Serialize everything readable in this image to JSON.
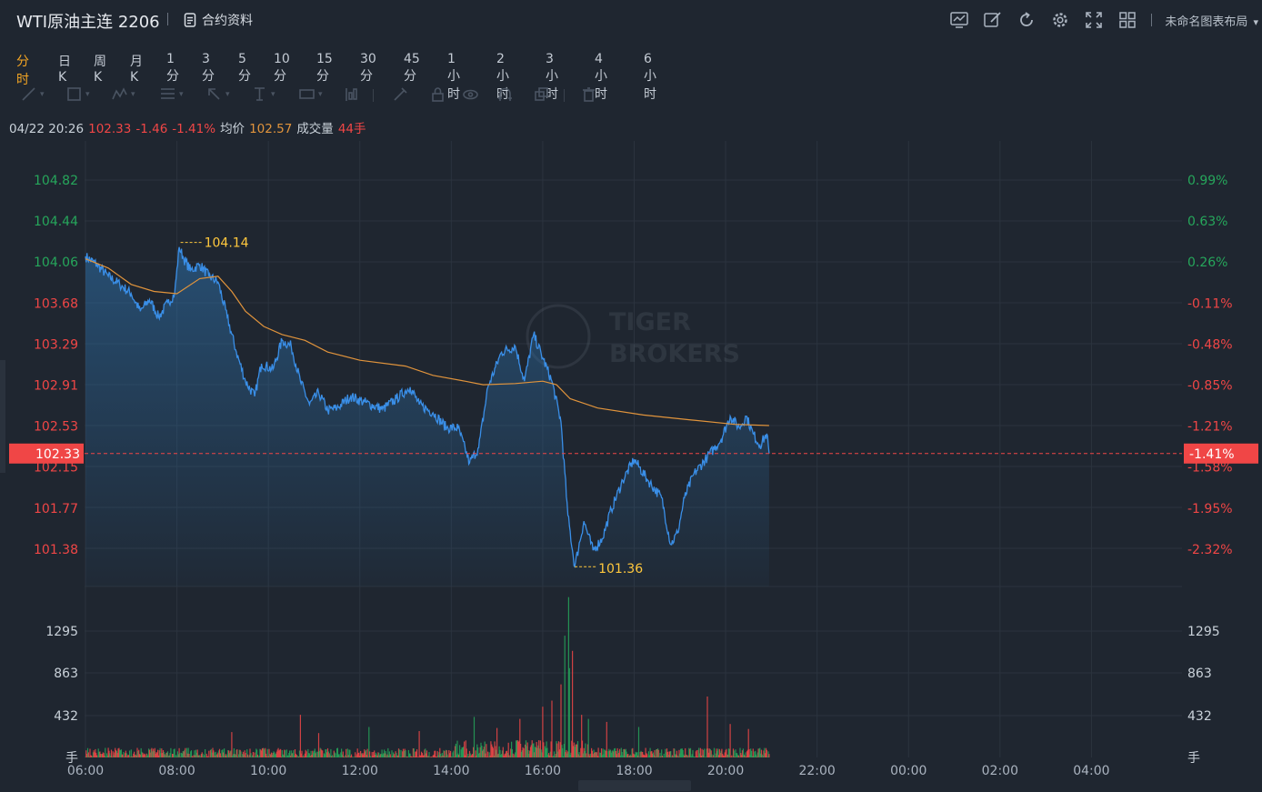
{
  "header": {
    "title": "WTI原油主连 2206",
    "contract_label": "合约资料",
    "layout_label": "未命名图表布局",
    "tool_icons": [
      "indicator-icon",
      "draw-icon",
      "refresh-icon",
      "gear-icon",
      "fullscreen-icon",
      "grid-layout-icon"
    ]
  },
  "periods": [
    "分时",
    "日K",
    "周K",
    "月K",
    "1分",
    "3分",
    "5分",
    "10分",
    "15分",
    "30分",
    "45分",
    "1小时",
    "2小时",
    "3小时",
    "4小时",
    "6小时"
  ],
  "active_period": "分时",
  "drawing_tools": [
    "line-tool-icon",
    "rectangle-tool-icon",
    "pattern-tool-icon",
    "fib-tool-icon",
    "cursor-arrow-icon",
    "text-tool-icon",
    "measure-tool-icon",
    "chart-type-icon",
    "pencil-icon",
    "lock-icon",
    "eye-icon",
    "magnet-icon",
    "copy-icon",
    "trash-icon"
  ],
  "info": {
    "datetime": "04/22 20:26",
    "price": "102.33",
    "change": "-1.46",
    "change_pct": "-1.41%",
    "avg_label": "均价",
    "avg_price": "102.57",
    "vol_label": "成交量",
    "vol_value": "44手"
  },
  "colors": {
    "up": "#26a65b",
    "down": "#f04646",
    "price_line": "#3a8fe8",
    "avg_line": "#e1943c",
    "accent": "#f5a623",
    "marker": "#ffc83d"
  },
  "chart_data": {
    "type": "line",
    "prev_close": 103.79,
    "current_price": 102.33,
    "current_price_label": "102.33",
    "current_pct_label": "-1.41%",
    "ylim": [
      101.19,
      105.01
    ],
    "price_ticks": [
      "104.82",
      "104.44",
      "104.06",
      "103.68",
      "103.29",
      "102.91",
      "102.53",
      "102.15",
      "101.77",
      "101.38"
    ],
    "pct_ticks": [
      "0.99%",
      "0.63%",
      "0.26%",
      "-0.11%",
      "-0.48%",
      "-0.85%",
      "-1.21%",
      "-1.58%",
      "-1.95%",
      "-2.32%"
    ],
    "x_ticks": [
      "06:00",
      "08:00",
      "10:00",
      "12:00",
      "14:00",
      "16:00",
      "18:00",
      "20:00",
      "22:00",
      "00:00",
      "02:00",
      "04:00"
    ],
    "time_range_hours": [
      0,
      24
    ],
    "high": {
      "label": "104.14",
      "hour": 2.08,
      "value": 104.14
    },
    "low": {
      "label": "101.36",
      "hour": 10.7,
      "value": 101.36
    },
    "price_points": [
      [
        0,
        104.02
      ],
      [
        0.25,
        103.95
      ],
      [
        0.5,
        103.85
      ],
      [
        0.75,
        103.78
      ],
      [
        1,
        103.7
      ],
      [
        1.2,
        103.55
      ],
      [
        1.4,
        103.65
      ],
      [
        1.6,
        103.5
      ],
      [
        1.8,
        103.62
      ],
      [
        1.95,
        103.7
      ],
      [
        2.05,
        104.1
      ],
      [
        2.15,
        104.0
      ],
      [
        2.3,
        103.9
      ],
      [
        2.5,
        103.95
      ],
      [
        2.7,
        103.85
      ],
      [
        2.9,
        103.8
      ],
      [
        3.1,
        103.5
      ],
      [
        3.3,
        103.2
      ],
      [
        3.5,
        102.95
      ],
      [
        3.7,
        102.82
      ],
      [
        3.85,
        103.1
      ],
      [
        4.1,
        103.05
      ],
      [
        4.3,
        103.3
      ],
      [
        4.5,
        103.25
      ],
      [
        4.7,
        102.95
      ],
      [
        4.9,
        102.75
      ],
      [
        5.1,
        102.85
      ],
      [
        5.3,
        102.7
      ],
      [
        5.5,
        102.72
      ],
      [
        5.8,
        102.82
      ],
      [
        6.1,
        102.77
      ],
      [
        6.5,
        102.71
      ],
      [
        6.8,
        102.8
      ],
      [
        7.1,
        102.9
      ],
      [
        7.3,
        102.75
      ],
      [
        7.6,
        102.68
      ],
      [
        7.9,
        102.55
      ],
      [
        8.15,
        102.55
      ],
      [
        8.4,
        102.25
      ],
      [
        8.6,
        102.38
      ],
      [
        8.8,
        102.9
      ],
      [
        9.1,
        103.2
      ],
      [
        9.4,
        103.25
      ],
      [
        9.6,
        102.95
      ],
      [
        9.8,
        103.35
      ],
      [
        10.0,
        103.15
      ],
      [
        10.2,
        102.95
      ],
      [
        10.4,
        102.6
      ],
      [
        10.55,
        101.8
      ],
      [
        10.7,
        101.36
      ],
      [
        10.9,
        101.75
      ],
      [
        11.1,
        101.5
      ],
      [
        11.3,
        101.6
      ],
      [
        11.5,
        101.85
      ],
      [
        11.75,
        102.1
      ],
      [
        12.0,
        102.28
      ],
      [
        12.3,
        102.1
      ],
      [
        12.6,
        101.95
      ],
      [
        12.8,
        101.55
      ],
      [
        12.95,
        101.65
      ],
      [
        13.1,
        101.95
      ],
      [
        13.3,
        102.15
      ],
      [
        13.6,
        102.3
      ],
      [
        13.9,
        102.45
      ],
      [
        14.1,
        102.65
      ],
      [
        14.3,
        102.55
      ],
      [
        14.45,
        102.65
      ],
      [
        14.6,
        102.5
      ],
      [
        14.75,
        102.4
      ],
      [
        14.9,
        102.5
      ],
      [
        14.95,
        102.33
      ]
    ],
    "avg_points": [
      [
        0,
        104.0
      ],
      [
        0.5,
        103.92
      ],
      [
        1,
        103.78
      ],
      [
        1.5,
        103.72
      ],
      [
        2,
        103.7
      ],
      [
        2.5,
        103.83
      ],
      [
        2.9,
        103.85
      ],
      [
        3.2,
        103.72
      ],
      [
        3.5,
        103.55
      ],
      [
        3.9,
        103.42
      ],
      [
        4.3,
        103.35
      ],
      [
        4.8,
        103.3
      ],
      [
        5.3,
        103.2
      ],
      [
        6,
        103.13
      ],
      [
        7,
        103.08
      ],
      [
        7.6,
        103.0
      ],
      [
        8.3,
        102.95
      ],
      [
        8.7,
        102.92
      ],
      [
        9.4,
        102.93
      ],
      [
        10.0,
        102.95
      ],
      [
        10.3,
        102.92
      ],
      [
        10.6,
        102.8
      ],
      [
        11.2,
        102.72
      ],
      [
        12.2,
        102.66
      ],
      [
        13.2,
        102.62
      ],
      [
        14.2,
        102.58
      ],
      [
        14.95,
        102.57
      ]
    ],
    "volume_ticks": [
      "1295",
      "863",
      "432"
    ],
    "volume_unit": "手",
    "volume_max": 1550,
    "volume_spikes": [
      [
        10.56,
        1580
      ],
      [
        10.48,
        1200
      ],
      [
        10.65,
        1050
      ],
      [
        10.58,
        880
      ],
      [
        10.4,
        720
      ],
      [
        13.6,
        600
      ],
      [
        10.2,
        560
      ],
      [
        10.0,
        500
      ],
      [
        4.7,
        420
      ],
      [
        8.5,
        400
      ],
      [
        9.5,
        380
      ],
      [
        11.4,
        350
      ],
      [
        14.1,
        330
      ],
      [
        12.1,
        300
      ],
      [
        6.2,
        300
      ],
      [
        9.0,
        290
      ],
      [
        7.3,
        260
      ],
      [
        3.2,
        250
      ],
      [
        5.1,
        240
      ],
      [
        14.5,
        280
      ],
      [
        10.85,
        420
      ],
      [
        11.0,
        380
      ]
    ]
  }
}
